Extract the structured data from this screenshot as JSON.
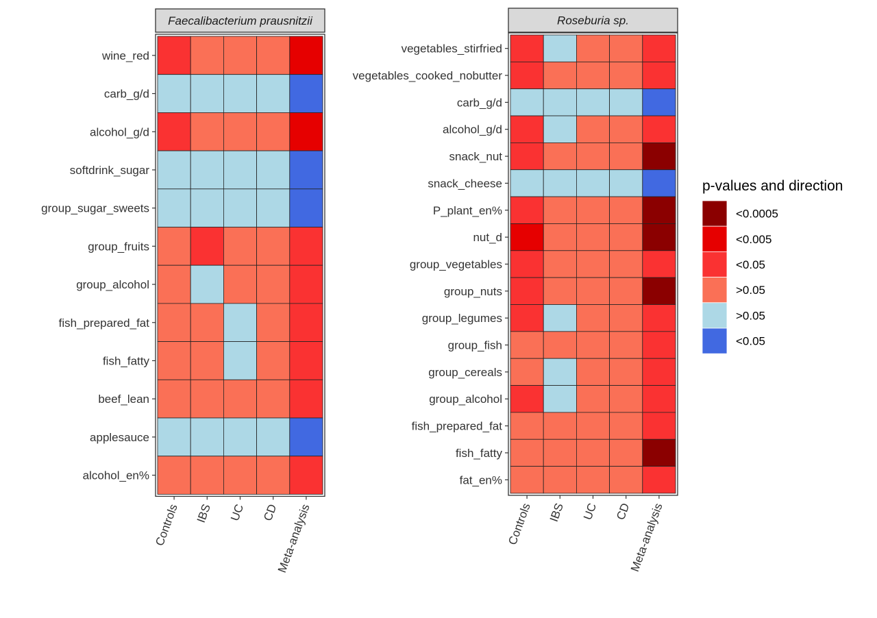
{
  "legend": {
    "title": "p-values and direction",
    "categories": [
      {
        "key": "pos_0005",
        "label": "<0.0005",
        "color": "#8b0000"
      },
      {
        "key": "pos_005",
        "label": "<0.005",
        "color": "#e60000"
      },
      {
        "key": "pos_05",
        "label": "<0.05",
        "color": "#fa3232"
      },
      {
        "key": "pos_ns",
        "label": ">0.05",
        "color": "#fa7056"
      },
      {
        "key": "neg_ns",
        "label": ">0.05",
        "color": "#add8e6"
      },
      {
        "key": "neg_05",
        "label": "<0.05",
        "color": "#4169e1"
      }
    ]
  },
  "chart_data": [
    {
      "type": "heatmap",
      "title": "Faecalibacterium prausnitzii",
      "columns": [
        "Controls",
        "IBS",
        "UC",
        "CD",
        "Meta-analysis"
      ],
      "rows": [
        "wine_red",
        "carb_g/d",
        "alcohol_g/d",
        "softdrink_sugar",
        "group_sugar_sweets",
        "group_fruits",
        "group_alcohol",
        "fish_prepared_fat",
        "fish_fatty",
        "beef_lean",
        "applesauce",
        "alcohol_en%"
      ],
      "values": [
        [
          "pos_05",
          "pos_ns",
          "pos_ns",
          "pos_ns",
          "pos_005"
        ],
        [
          "neg_ns",
          "neg_ns",
          "neg_ns",
          "neg_ns",
          "neg_05"
        ],
        [
          "pos_05",
          "pos_ns",
          "pos_ns",
          "pos_ns",
          "pos_005"
        ],
        [
          "neg_ns",
          "neg_ns",
          "neg_ns",
          "neg_ns",
          "neg_05"
        ],
        [
          "neg_ns",
          "neg_ns",
          "neg_ns",
          "neg_ns",
          "neg_05"
        ],
        [
          "pos_ns",
          "pos_05",
          "pos_ns",
          "pos_ns",
          "pos_05"
        ],
        [
          "pos_ns",
          "neg_ns",
          "pos_ns",
          "pos_ns",
          "pos_05"
        ],
        [
          "pos_ns",
          "pos_ns",
          "neg_ns",
          "pos_ns",
          "pos_05"
        ],
        [
          "pos_ns",
          "pos_ns",
          "neg_ns",
          "pos_ns",
          "pos_05"
        ],
        [
          "pos_ns",
          "pos_ns",
          "pos_ns",
          "pos_ns",
          "pos_05"
        ],
        [
          "neg_ns",
          "neg_ns",
          "neg_ns",
          "neg_ns",
          "neg_05"
        ],
        [
          "pos_ns",
          "pos_ns",
          "pos_ns",
          "pos_ns",
          "pos_05"
        ]
      ]
    },
    {
      "type": "heatmap",
      "title": "Roseburia sp.",
      "columns": [
        "Controls",
        "IBS",
        "UC",
        "CD",
        "Meta-analysis"
      ],
      "rows": [
        "vegetables_stirfried",
        "vegetables_cooked_nobutter",
        "carb_g/d",
        "alcohol_g/d",
        "snack_nut",
        "snack_cheese",
        "P_plant_en%",
        "nut_d",
        "group_vegetables",
        "group_nuts",
        "group_legumes",
        "group_fish",
        "group_cereals",
        "group_alcohol",
        "fish_prepared_fat",
        "fish_fatty",
        "fat_en%"
      ],
      "values": [
        [
          "pos_05",
          "neg_ns",
          "pos_ns",
          "pos_ns",
          "pos_05"
        ],
        [
          "pos_05",
          "pos_ns",
          "pos_ns",
          "pos_ns",
          "pos_05"
        ],
        [
          "neg_ns",
          "neg_ns",
          "neg_ns",
          "neg_ns",
          "neg_05"
        ],
        [
          "pos_05",
          "neg_ns",
          "pos_ns",
          "pos_ns",
          "pos_05"
        ],
        [
          "pos_05",
          "pos_ns",
          "pos_ns",
          "pos_ns",
          "pos_0005"
        ],
        [
          "neg_ns",
          "neg_ns",
          "neg_ns",
          "neg_ns",
          "neg_05"
        ],
        [
          "pos_05",
          "pos_ns",
          "pos_ns",
          "pos_ns",
          "pos_0005"
        ],
        [
          "pos_005",
          "pos_ns",
          "pos_ns",
          "pos_ns",
          "pos_0005"
        ],
        [
          "pos_05",
          "pos_ns",
          "pos_ns",
          "pos_ns",
          "pos_05"
        ],
        [
          "pos_05",
          "pos_ns",
          "pos_ns",
          "pos_ns",
          "pos_0005"
        ],
        [
          "pos_05",
          "neg_ns",
          "pos_ns",
          "pos_ns",
          "pos_05"
        ],
        [
          "pos_ns",
          "pos_ns",
          "pos_ns",
          "pos_ns",
          "pos_05"
        ],
        [
          "pos_ns",
          "neg_ns",
          "pos_ns",
          "pos_ns",
          "pos_05"
        ],
        [
          "pos_05",
          "neg_ns",
          "pos_ns",
          "pos_ns",
          "pos_05"
        ],
        [
          "pos_ns",
          "pos_ns",
          "pos_ns",
          "pos_ns",
          "pos_05"
        ],
        [
          "pos_ns",
          "pos_ns",
          "pos_ns",
          "pos_ns",
          "pos_0005"
        ],
        [
          "pos_ns",
          "pos_ns",
          "pos_ns",
          "pos_ns",
          "pos_05"
        ]
      ]
    }
  ]
}
